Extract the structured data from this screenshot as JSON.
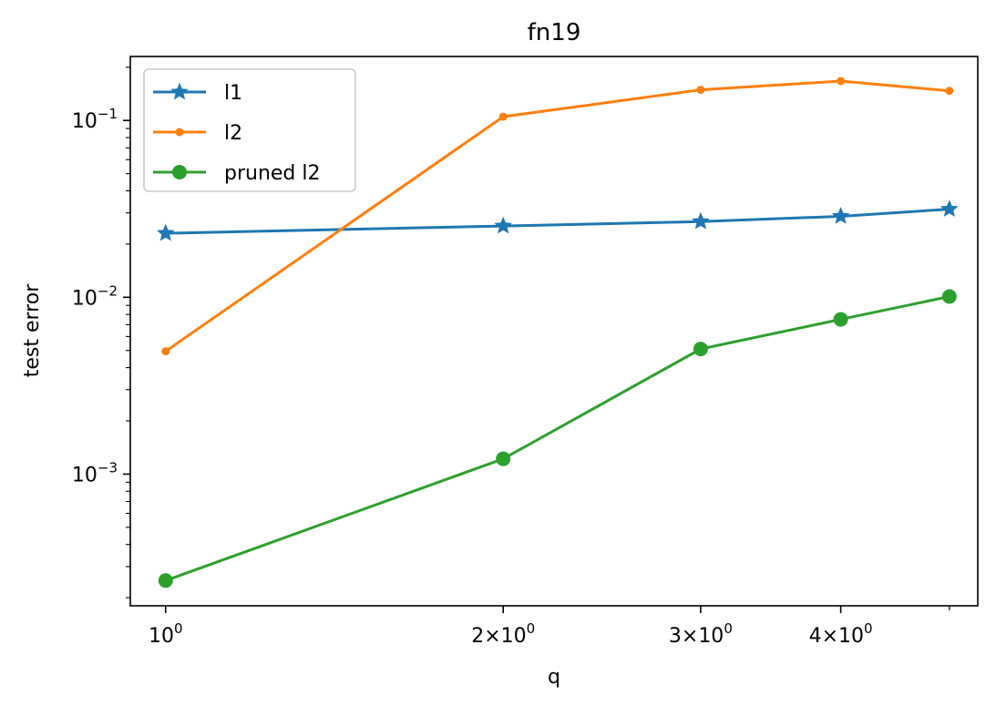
{
  "chart_data": {
    "type": "line",
    "title": "fn19",
    "xlabel": "q",
    "ylabel": "test error",
    "xscale": "log",
    "yscale": "log",
    "xlim": [
      0.93,
      5.3
    ],
    "ylim": [
      0.00018,
      0.23
    ],
    "x": [
      1,
      2,
      3,
      4,
      5
    ],
    "xtick_labels": [
      {
        "value": 1,
        "base": "10",
        "exp": "0",
        "prefix": ""
      },
      {
        "value": 2,
        "base": "10",
        "exp": "0",
        "prefix": "2×"
      },
      {
        "value": 3,
        "base": "10",
        "exp": "0",
        "prefix": "3×"
      },
      {
        "value": 4,
        "base": "10",
        "exp": "0",
        "prefix": "4×"
      }
    ],
    "ytick_labels": [
      {
        "value": 0.1,
        "base": "10",
        "exp": "−1"
      },
      {
        "value": 0.01,
        "base": "10",
        "exp": "−2"
      },
      {
        "value": 0.001,
        "base": "10",
        "exp": "−3"
      }
    ],
    "legend_position": "upper-left",
    "grid": false,
    "series": [
      {
        "name": "l1",
        "color": "#1f77b4",
        "marker": "star",
        "values": [
          0.023,
          0.0253,
          0.0268,
          0.0287,
          0.0315
        ]
      },
      {
        "name": "l2",
        "color": "#ff7f0e",
        "marker": "small-circle",
        "values": [
          0.00495,
          0.105,
          0.149,
          0.167,
          0.147
        ]
      },
      {
        "name": "pruned l2",
        "color": "#2ca02c",
        "marker": "circle",
        "values": [
          0.00025,
          0.00122,
          0.0051,
          0.0075,
          0.0101
        ]
      }
    ]
  }
}
